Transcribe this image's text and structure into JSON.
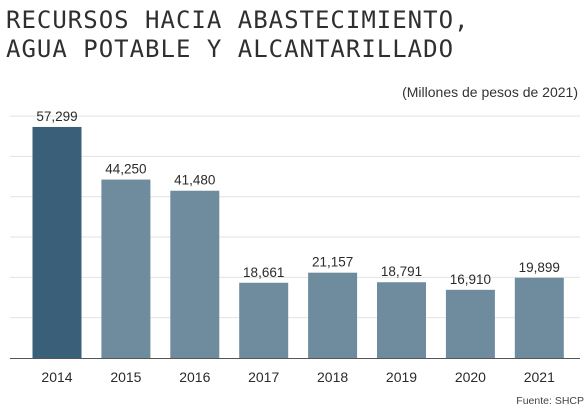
{
  "chart_data": {
    "type": "bar",
    "title_lines": [
      "RECURSOS HACIA ABASTECIMIENTO,",
      "AGUA POTABLE Y ALCANTARILLADO"
    ],
    "subtitle": "(Millones de pesos de 2021)",
    "source": "Fuente: SHCP",
    "categories": [
      "2014",
      "2015",
      "2016",
      "2017",
      "2018",
      "2019",
      "2020",
      "2021"
    ],
    "values": [
      57299,
      44250,
      41480,
      18661,
      21157,
      18791,
      16910,
      19899
    ],
    "value_labels": [
      "57,299",
      "44,250",
      "41,480",
      "18,661",
      "21,157",
      "18,791",
      "16,910",
      "19,899"
    ],
    "ylim": [
      0,
      62000
    ],
    "grid": true,
    "colors": {
      "highlight": "#3a5f78",
      "bar": "#6f8c9f",
      "grid": "#e2e2e2",
      "axis": "#555555"
    }
  }
}
